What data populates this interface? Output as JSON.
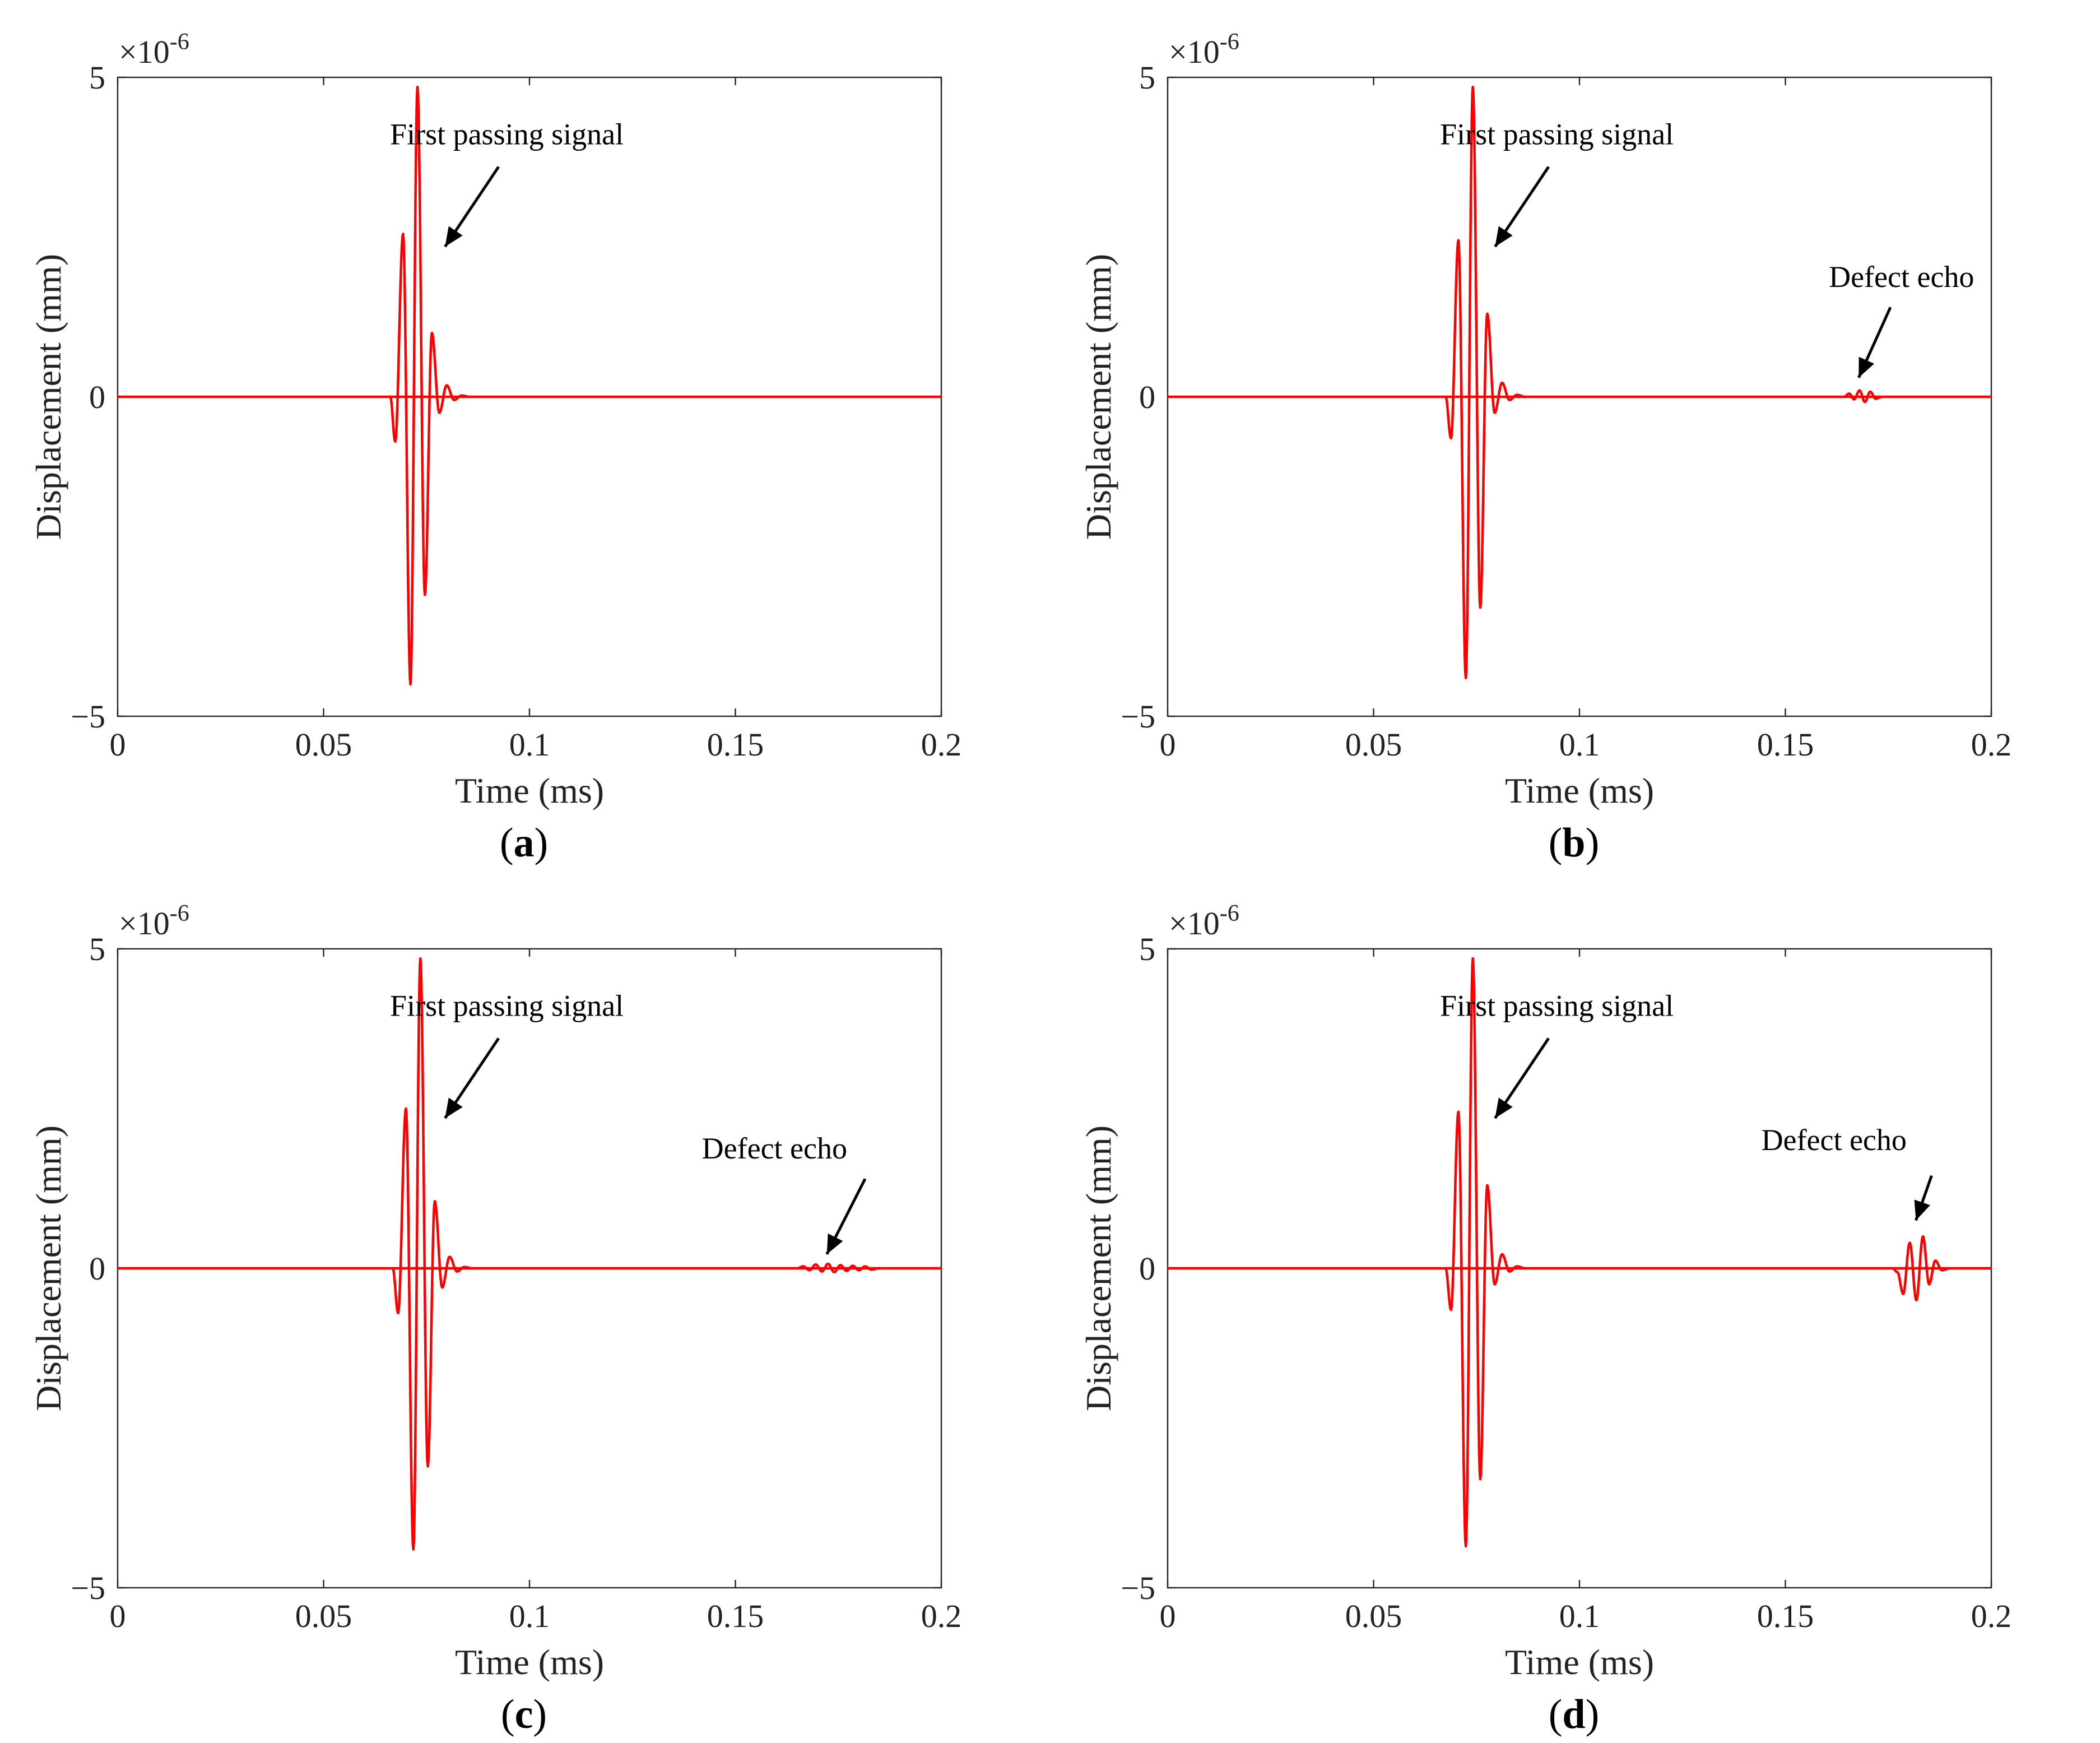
{
  "figure": {
    "x_label": "Time (ms)",
    "y_label": "Displacement  (mm)",
    "y_exponent_label": "×10",
    "y_exponent_power": "-6",
    "line_color": "#ff0000",
    "annotation_color": "#000000"
  },
  "chart_data": [
    {
      "type": "line",
      "id": "a",
      "caption_open": "(",
      "caption_letter": "a",
      "caption_close": ")",
      "xlim": [
        0,
        0.2
      ],
      "ylim": [
        -5,
        5
      ],
      "xticks": [
        0,
        0.05,
        0.1,
        0.15,
        0.2
      ],
      "xtick_labels": [
        "0",
        "0.05",
        "0.1",
        "0.15",
        "0.2"
      ],
      "yticks": [
        -5,
        0,
        5
      ],
      "ytick_labels": [
        "−5",
        "0",
        "5"
      ],
      "main_peaks": [
        {
          "x": 0.0662,
          "y": 0.0
        },
        {
          "x": 0.0674,
          "y": -0.7
        },
        {
          "x": 0.0693,
          "y": 2.55
        },
        {
          "x": 0.0711,
          "y": -4.5
        },
        {
          "x": 0.0728,
          "y": 4.85
        },
        {
          "x": 0.0746,
          "y": -3.1
        },
        {
          "x": 0.0763,
          "y": 1.0
        },
        {
          "x": 0.0781,
          "y": -0.25
        },
        {
          "x": 0.0799,
          "y": 0.18
        },
        {
          "x": 0.0817,
          "y": -0.05
        },
        {
          "x": 0.0835,
          "y": 0.02
        },
        {
          "x": 0.0855,
          "y": 0.0
        }
      ],
      "echo_peaks": [],
      "annotations": [
        {
          "text": "First passing signal",
          "text_x": 0.0945,
          "text_y": 3.95,
          "tail_x": 0.0925,
          "tail_y": 3.6,
          "head_x": 0.0795,
          "head_y": 2.35
        }
      ]
    },
    {
      "type": "line",
      "id": "b",
      "caption_open": "(",
      "caption_letter": "b",
      "caption_close": ")",
      "xlim": [
        0,
        0.2
      ],
      "ylim": [
        -5,
        5
      ],
      "xticks": [
        0,
        0.05,
        0.1,
        0.15,
        0.2
      ],
      "xtick_labels": [
        "0",
        "0.05",
        "0.1",
        "0.15",
        "0.2"
      ],
      "yticks": [
        -5,
        0,
        5
      ],
      "ytick_labels": [
        "−5",
        "0",
        "5"
      ],
      "main_peaks": [
        {
          "x": 0.0675,
          "y": 0.0
        },
        {
          "x": 0.0688,
          "y": -0.65
        },
        {
          "x": 0.0706,
          "y": 2.45
        },
        {
          "x": 0.0724,
          "y": -4.4
        },
        {
          "x": 0.0741,
          "y": 4.85
        },
        {
          "x": 0.0759,
          "y": -3.3
        },
        {
          "x": 0.0776,
          "y": 1.3
        },
        {
          "x": 0.0794,
          "y": -0.25
        },
        {
          "x": 0.0812,
          "y": 0.22
        },
        {
          "x": 0.083,
          "y": -0.05
        },
        {
          "x": 0.0848,
          "y": 0.03
        },
        {
          "x": 0.0868,
          "y": 0.0
        }
      ],
      "echo_peaks": [
        {
          "x": 0.1642,
          "y": 0.0
        },
        {
          "x": 0.1655,
          "y": 0.05
        },
        {
          "x": 0.1667,
          "y": -0.04
        },
        {
          "x": 0.168,
          "y": 0.1
        },
        {
          "x": 0.1693,
          "y": -0.08
        },
        {
          "x": 0.1706,
          "y": 0.08
        },
        {
          "x": 0.1719,
          "y": -0.03
        },
        {
          "x": 0.1735,
          "y": 0.0
        }
      ],
      "annotations": [
        {
          "text": "First passing signal",
          "text_x": 0.0945,
          "text_y": 3.95,
          "tail_x": 0.0925,
          "tail_y": 3.6,
          "head_x": 0.0795,
          "head_y": 2.35
        },
        {
          "text": "Defect echo",
          "text_x": 0.1782,
          "text_y": 1.72,
          "tail_x": 0.1755,
          "tail_y": 1.4,
          "head_x": 0.1678,
          "head_y": 0.3
        }
      ]
    },
    {
      "type": "line",
      "id": "c",
      "caption_open": "(",
      "caption_letter": "c",
      "caption_close": ")",
      "xlim": [
        0,
        0.2
      ],
      "ylim": [
        -5,
        5
      ],
      "xticks": [
        0,
        0.05,
        0.1,
        0.15,
        0.2
      ],
      "xtick_labels": [
        "0",
        "0.05",
        "0.1",
        "0.15",
        "0.2"
      ],
      "yticks": [
        -5,
        0,
        5
      ],
      "ytick_labels": [
        "−5",
        "0",
        "5"
      ],
      "main_peaks": [
        {
          "x": 0.0668,
          "y": 0.0
        },
        {
          "x": 0.0681,
          "y": -0.7
        },
        {
          "x": 0.07,
          "y": 2.5
        },
        {
          "x": 0.0718,
          "y": -4.4
        },
        {
          "x": 0.0735,
          "y": 4.85
        },
        {
          "x": 0.0753,
          "y": -3.1
        },
        {
          "x": 0.077,
          "y": 1.05
        },
        {
          "x": 0.0788,
          "y": -0.3
        },
        {
          "x": 0.0806,
          "y": 0.18
        },
        {
          "x": 0.0824,
          "y": -0.05
        },
        {
          "x": 0.0842,
          "y": 0.02
        },
        {
          "x": 0.0862,
          "y": 0.0
        }
      ],
      "echo_peaks": [
        {
          "x": 0.165,
          "y": 0.0
        },
        {
          "x": 0.1665,
          "y": 0.03
        },
        {
          "x": 0.168,
          "y": -0.03
        },
        {
          "x": 0.1695,
          "y": 0.06
        },
        {
          "x": 0.171,
          "y": -0.05
        },
        {
          "x": 0.1725,
          "y": 0.07
        },
        {
          "x": 0.174,
          "y": -0.06
        },
        {
          "x": 0.1755,
          "y": 0.05
        },
        {
          "x": 0.177,
          "y": -0.04
        },
        {
          "x": 0.1785,
          "y": 0.04
        },
        {
          "x": 0.18,
          "y": -0.03
        },
        {
          "x": 0.1815,
          "y": 0.03
        },
        {
          "x": 0.183,
          "y": -0.02
        },
        {
          "x": 0.185,
          "y": 0.0
        }
      ],
      "annotations": [
        {
          "text": "First passing signal",
          "text_x": 0.0945,
          "text_y": 3.95,
          "tail_x": 0.0925,
          "tail_y": 3.6,
          "head_x": 0.0795,
          "head_y": 2.35
        },
        {
          "text": "Defect echo",
          "text_x": 0.1595,
          "text_y": 1.72,
          "tail_x": 0.1815,
          "tail_y": 1.4,
          "head_x": 0.1722,
          "head_y": 0.22
        }
      ]
    },
    {
      "type": "line",
      "id": "d",
      "caption_open": "(",
      "caption_letter": "d",
      "caption_close": ")",
      "xlim": [
        0,
        0.2
      ],
      "ylim": [
        -5,
        5
      ],
      "xticks": [
        0,
        0.05,
        0.1,
        0.15,
        0.2
      ],
      "xtick_labels": [
        "0",
        "0.05",
        "0.1",
        "0.15",
        "0.2"
      ],
      "yticks": [
        -5,
        0,
        5
      ],
      "ytick_labels": [
        "−5",
        "0",
        "5"
      ],
      "main_peaks": [
        {
          "x": 0.0675,
          "y": 0.0
        },
        {
          "x": 0.0688,
          "y": -0.65
        },
        {
          "x": 0.0706,
          "y": 2.45
        },
        {
          "x": 0.0724,
          "y": -4.35
        },
        {
          "x": 0.0741,
          "y": 4.85
        },
        {
          "x": 0.0759,
          "y": -3.3
        },
        {
          "x": 0.0776,
          "y": 1.3
        },
        {
          "x": 0.0794,
          "y": -0.25
        },
        {
          "x": 0.0812,
          "y": 0.22
        },
        {
          "x": 0.083,
          "y": -0.05
        },
        {
          "x": 0.0848,
          "y": 0.03
        },
        {
          "x": 0.0868,
          "y": 0.0
        }
      ],
      "echo_peaks": [
        {
          "x": 0.176,
          "y": 0.0
        },
        {
          "x": 0.1772,
          "y": -0.06
        },
        {
          "x": 0.1786,
          "y": -0.4
        },
        {
          "x": 0.1802,
          "y": 0.4
        },
        {
          "x": 0.1818,
          "y": -0.5
        },
        {
          "x": 0.1834,
          "y": 0.5
        },
        {
          "x": 0.1849,
          "y": -0.25
        },
        {
          "x": 0.1864,
          "y": 0.12
        },
        {
          "x": 0.188,
          "y": -0.03
        },
        {
          "x": 0.19,
          "y": 0.0
        }
      ],
      "annotations": [
        {
          "text": "First passing signal",
          "text_x": 0.0945,
          "text_y": 3.95,
          "tail_x": 0.0925,
          "tail_y": 3.6,
          "head_x": 0.0795,
          "head_y": 2.35
        },
        {
          "text": "Defect echo",
          "text_x": 0.1618,
          "text_y": 1.85,
          "tail_x": 0.1855,
          "tail_y": 1.45,
          "head_x": 0.1817,
          "head_y": 0.75
        }
      ]
    }
  ]
}
